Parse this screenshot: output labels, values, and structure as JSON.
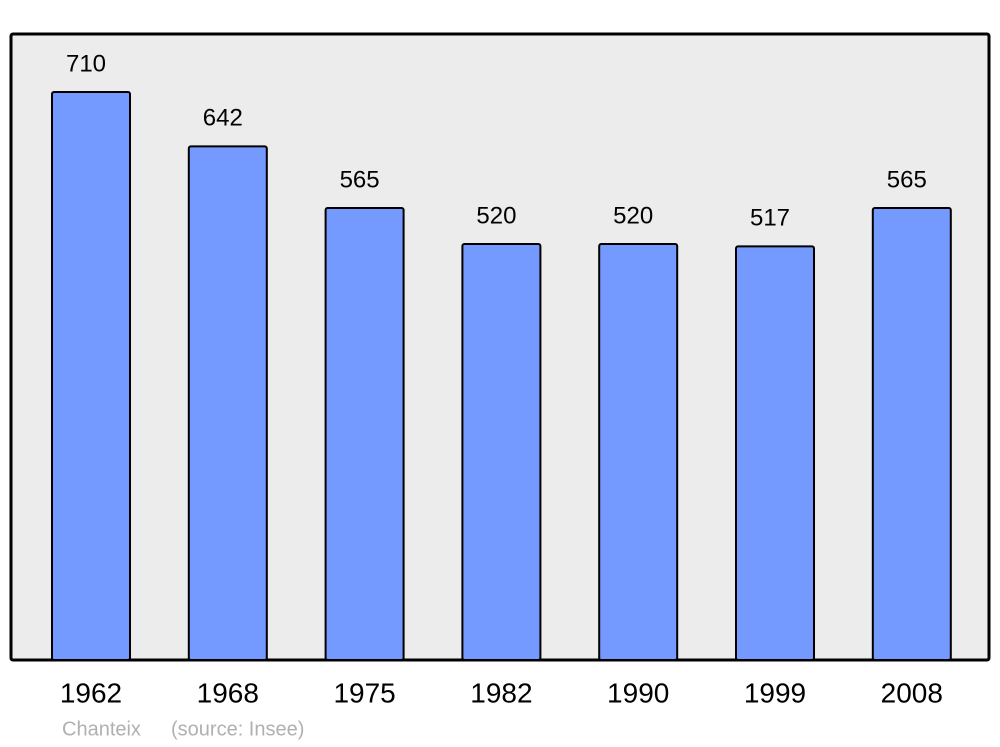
{
  "chart_data": {
    "type": "bar",
    "categories": [
      "1962",
      "1968",
      "1975",
      "1982",
      "1990",
      "1999",
      "2008"
    ],
    "values": [
      710,
      642,
      565,
      520,
      520,
      517,
      565
    ],
    "color": "#7499ff",
    "place": "Chanteix",
    "source": "(source: Insee)"
  }
}
